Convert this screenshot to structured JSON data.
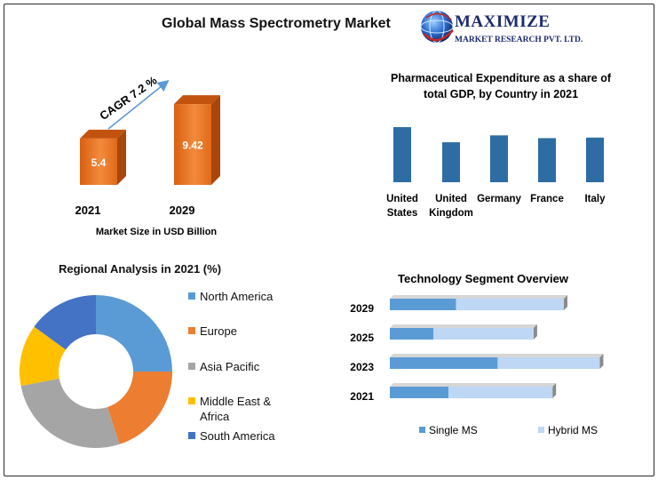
{
  "header": {
    "title": "Global Mass Spectrometry Market",
    "logo_brand": "MAXIMIZE",
    "logo_sub": "MARKET RESEARCH PVT. LTD."
  },
  "colors": {
    "orange": "#e8701e",
    "orange_dark": "#a9460c",
    "blue_bar": "#2e6da4",
    "single_ms": "#5b9bd5",
    "hybrid_ms": "#bdd7f4"
  },
  "chart_data": [
    {
      "id": "market-size",
      "type": "bar",
      "categories": [
        "2021",
        "2029"
      ],
      "values": [
        5.4,
        9.42
      ],
      "value_labels": [
        "5.4",
        "9.42"
      ],
      "xlabel": "Market Size in USD Billion",
      "annotation": "CAGR 7.2 %",
      "ylim": [
        0,
        10
      ]
    },
    {
      "id": "pharma-expenditure",
      "type": "bar",
      "title": "Pharmaceutical Expenditure as a share of total GDP, by Country in 2021",
      "categories": [
        [
          "United",
          "States"
        ],
        [
          "United",
          "Kingdom"
        ],
        [
          "Germany"
        ],
        [
          "France"
        ],
        [
          "Italy"
        ]
      ],
      "values": [
        2.0,
        1.45,
        1.7,
        1.6,
        1.62
      ],
      "ylim": [
        0,
        2.1
      ]
    },
    {
      "id": "regional",
      "type": "pie",
      "title": "Regional Analysis in 2021 (%)",
      "labels": [
        "North America",
        "Europe",
        "Asia Pacific",
        "Middle East & Africa",
        "South America"
      ],
      "legend_lines": [
        [
          "North America"
        ],
        [
          "Europe"
        ],
        [
          "Asia Pacific"
        ],
        [
          "Middle East &",
          "Africa"
        ],
        [
          "South America"
        ]
      ],
      "values": [
        25,
        20,
        27,
        13,
        15
      ],
      "colors": [
        "#5b9bd5",
        "#ed7d31",
        "#a5a5a5",
        "#ffc000",
        "#4472c4"
      ]
    },
    {
      "id": "technology",
      "type": "bar",
      "title": "Technology Segment Overview",
      "categories": [
        "2029",
        "2025",
        "2023",
        "2021"
      ],
      "series": [
        {
          "name": "Single MS",
          "values": [
            3.5,
            2.3,
            5.7,
            3.1
          ]
        },
        {
          "name": "Hybrid MS",
          "values": [
            5.7,
            5.3,
            5.4,
            5.5
          ]
        }
      ],
      "xlim": [
        0,
        11.2
      ]
    }
  ]
}
